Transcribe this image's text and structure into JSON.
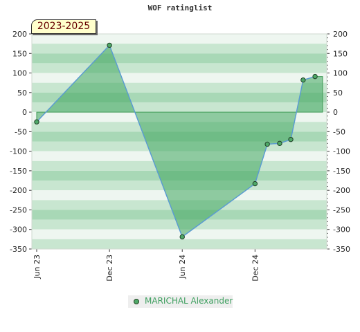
{
  "chart_data": {
    "type": "area",
    "title": "WOF ratinglist",
    "period": "2023-2025",
    "ylim": [
      -350,
      200
    ],
    "y_ticks": [
      200,
      150,
      100,
      50,
      0,
      -50,
      -100,
      -150,
      -200,
      -250,
      -300,
      -350
    ],
    "x_ticks": [
      "Jun 23",
      "Dec 23",
      "Jun 24",
      "Dec 24"
    ],
    "x_range": [
      "2023-06-01",
      "2025-05-20"
    ],
    "series": [
      {
        "name": "MARICHAL Alexander",
        "color": "#5aaa6a",
        "points": [
          {
            "x": "2023-06-01",
            "y": -25
          },
          {
            "x": "2023-12-01",
            "y": 171
          },
          {
            "x": "2024-06-01",
            "y": -319
          },
          {
            "x": "2024-12-01",
            "y": -183
          },
          {
            "x": "2025-01-01",
            "y": -82
          },
          {
            "x": "2025-02-01",
            "y": -80
          },
          {
            "x": "2025-03-01",
            "y": -70
          },
          {
            "x": "2025-04-01",
            "y": 82
          },
          {
            "x": "2025-05-01",
            "y": 91
          }
        ]
      }
    ],
    "grid": true,
    "legend_position": "bottom-center"
  }
}
